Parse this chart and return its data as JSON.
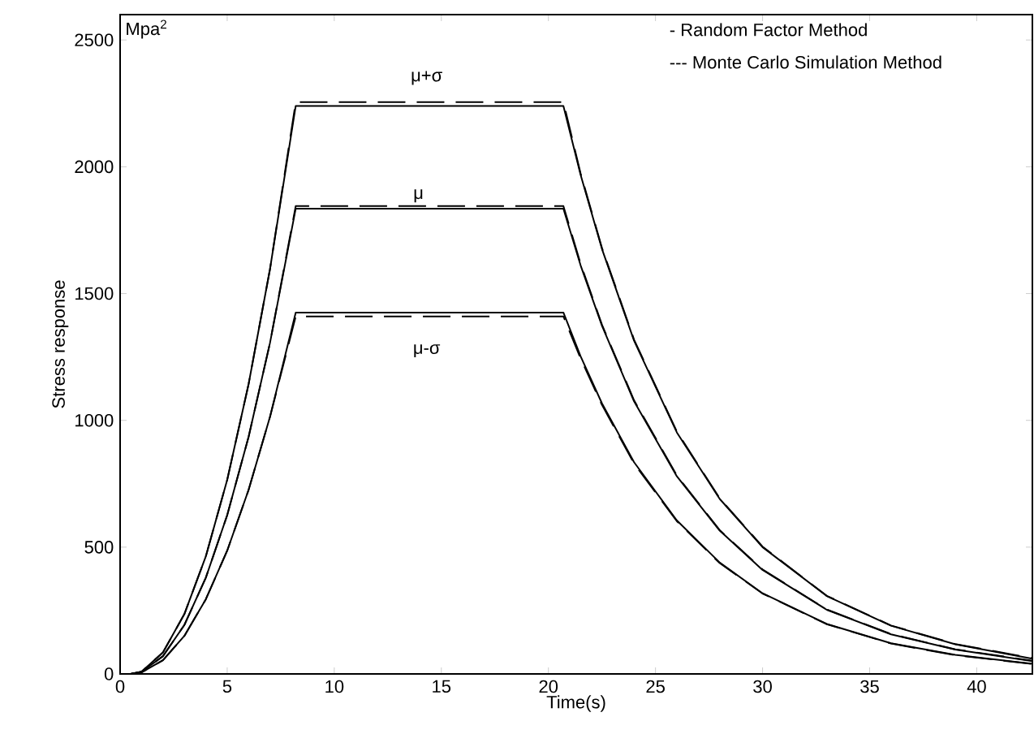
{
  "chart_data": {
    "type": "line",
    "xlabel": "Time(s)",
    "ylabel": "Stress response",
    "x": [
      0,
      0.5,
      1,
      2,
      3,
      4,
      5,
      6,
      7,
      8.2,
      20.7,
      21.5,
      22.5,
      24,
      26,
      28,
      30,
      33,
      36,
      39,
      42.6
    ],
    "xlim": [
      0,
      42.6
    ],
    "ylim": [
      0,
      2600
    ],
    "xticks": [
      0,
      5,
      10,
      15,
      20,
      25,
      30,
      35,
      40
    ],
    "yticks": [
      0,
      500,
      1000,
      1500,
      2000,
      2500
    ],
    "series": [
      {
        "color": "#000000",
        "line_style": "solid",
        "values": [
          0,
          0,
          9,
          85,
          236,
          463,
          765,
          1143,
          1597,
          2240,
          2240,
          1969,
          1676,
          1314,
          952,
          690,
          500,
          307,
          190,
          117,
          60
        ]
      },
      {
        "color": "#000000",
        "line_style": "dashed",
        "values": [
          0,
          0,
          9,
          85,
          236,
          463,
          765,
          1143,
          1597,
          2255,
          2255,
          1975,
          1680,
          1318,
          955,
          692,
          502,
          308,
          191,
          118,
          62
        ]
      },
      {
        "color": "#000000",
        "line_style": "solid",
        "values": [
          0,
          0,
          8,
          70,
          193,
          379,
          626,
          935,
          1306,
          1835,
          1835,
          1612,
          1373,
          1075,
          779,
          565,
          410,
          253,
          156,
          96,
          50
        ]
      },
      {
        "color": "#000000",
        "line_style": "dashed",
        "values": [
          0,
          0,
          8,
          70,
          193,
          379,
          626,
          935,
          1306,
          1845,
          1845,
          1618,
          1377,
          1079,
          782,
          567,
          412,
          254,
          157,
          97,
          52
        ]
      },
      {
        "color": "#000000",
        "line_style": "solid",
        "values": [
          0,
          0,
          6,
          54,
          150,
          294,
          486,
          726,
          1014,
          1425,
          1425,
          1253,
          1067,
          835,
          605,
          439,
          318,
          197,
          121,
          75,
          40
        ]
      },
      {
        "color": "#000000",
        "line_style": "dashed",
        "values": [
          0,
          0,
          6,
          54,
          150,
          294,
          486,
          726,
          1014,
          1410,
          1410,
          1245,
          1061,
          830,
          602,
          437,
          317,
          196,
          120,
          74,
          39
        ]
      }
    ],
    "annotations": [
      "Mpa$^{2}$",
      "- Random Factor Method",
      "--- Monte Carlo Simulation Method",
      "μ+σ",
      "μ",
      "μ-σ"
    ]
  }
}
